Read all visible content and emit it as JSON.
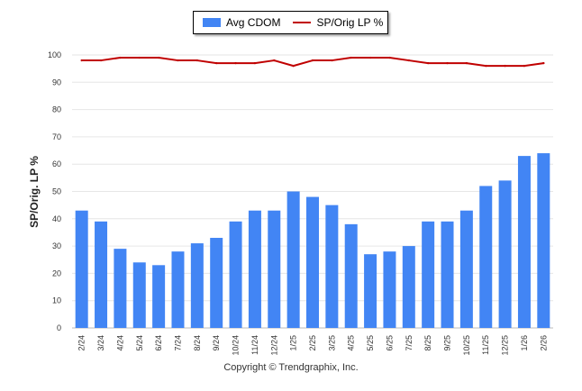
{
  "chart_data": {
    "type": "bar",
    "title": "",
    "xlabel": "",
    "ylabel": "SP/Orig. LP %",
    "ylim": [
      0,
      100
    ],
    "yticks": [
      0,
      10,
      20,
      30,
      40,
      50,
      60,
      70,
      80,
      90,
      100
    ],
    "grid": true,
    "legend_position": "top-center",
    "categories": [
      "2/24",
      "3/24",
      "4/24",
      "5/24",
      "6/24",
      "7/24",
      "8/24",
      "9/24",
      "10/24",
      "11/24",
      "12/24",
      "1/25",
      "2/25",
      "3/25",
      "4/25",
      "5/25",
      "6/25",
      "7/25",
      "8/25",
      "9/25",
      "10/25",
      "11/25",
      "12/25",
      "1/26",
      "2/26"
    ],
    "series": [
      {
        "name": "Avg CDOM",
        "kind": "bar",
        "color": "#4285f4",
        "values": [
          43,
          39,
          29,
          24,
          23,
          28,
          31,
          33,
          39,
          43,
          43,
          50,
          48,
          45,
          38,
          27,
          28,
          30,
          39,
          39,
          43,
          52,
          54,
          63,
          64
        ]
      },
      {
        "name": "SP/Orig LP %",
        "kind": "line",
        "color": "#c00000",
        "values": [
          98,
          98,
          99,
          99,
          99,
          98,
          98,
          97,
          97,
          97,
          98,
          96,
          98,
          98,
          99,
          99,
          99,
          98,
          97,
          97,
          97,
          96,
          96,
          96,
          97
        ]
      }
    ]
  },
  "legend": {
    "bar_label": "Avg CDOM",
    "line_label": "SP/Orig LP %"
  },
  "footer": "Copyright © Trendgraphix, Inc."
}
